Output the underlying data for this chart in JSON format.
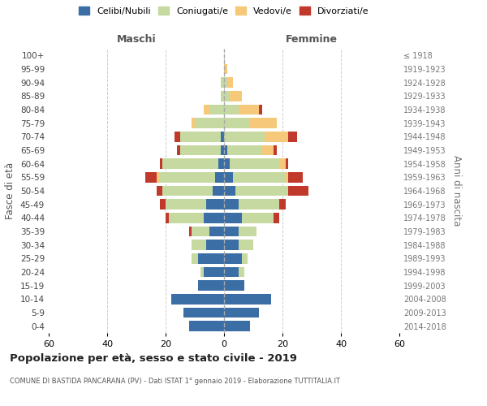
{
  "age_groups": [
    "0-4",
    "5-9",
    "10-14",
    "15-19",
    "20-24",
    "25-29",
    "30-34",
    "35-39",
    "40-44",
    "45-49",
    "50-54",
    "55-59",
    "60-64",
    "65-69",
    "70-74",
    "75-79",
    "80-84",
    "85-89",
    "90-94",
    "95-99",
    "100+"
  ],
  "birth_years": [
    "2014-2018",
    "2009-2013",
    "2004-2008",
    "1999-2003",
    "1994-1998",
    "1989-1993",
    "1984-1988",
    "1979-1983",
    "1974-1978",
    "1969-1973",
    "1964-1968",
    "1959-1963",
    "1954-1958",
    "1949-1953",
    "1944-1948",
    "1939-1943",
    "1934-1938",
    "1929-1933",
    "1924-1928",
    "1919-1923",
    "≤ 1918"
  ],
  "maschi": {
    "celibi": [
      12,
      14,
      18,
      9,
      7,
      9,
      6,
      5,
      7,
      6,
      4,
      3,
      2,
      1,
      1,
      0,
      0,
      0,
      0,
      0,
      0
    ],
    "coniugati": [
      0,
      0,
      0,
      0,
      1,
      2,
      5,
      6,
      12,
      14,
      17,
      19,
      19,
      14,
      14,
      10,
      5,
      1,
      1,
      0,
      0
    ],
    "vedovi": [
      0,
      0,
      0,
      0,
      0,
      0,
      0,
      0,
      0,
      0,
      0,
      1,
      0,
      0,
      0,
      1,
      2,
      0,
      0,
      0,
      0
    ],
    "divorziati": [
      0,
      0,
      0,
      0,
      0,
      0,
      0,
      1,
      1,
      2,
      2,
      4,
      1,
      1,
      2,
      0,
      0,
      0,
      0,
      0,
      0
    ]
  },
  "femmine": {
    "nubili": [
      9,
      12,
      16,
      7,
      5,
      6,
      5,
      5,
      6,
      5,
      4,
      3,
      2,
      1,
      0,
      0,
      0,
      0,
      0,
      0,
      0
    ],
    "coniugate": [
      0,
      0,
      0,
      0,
      2,
      2,
      5,
      6,
      11,
      14,
      18,
      18,
      17,
      12,
      14,
      9,
      5,
      2,
      1,
      0,
      0
    ],
    "vedove": [
      0,
      0,
      0,
      0,
      0,
      0,
      0,
      0,
      0,
      0,
      0,
      1,
      2,
      4,
      8,
      9,
      7,
      4,
      2,
      1,
      0
    ],
    "divorziate": [
      0,
      0,
      0,
      0,
      0,
      0,
      0,
      0,
      2,
      2,
      7,
      5,
      1,
      1,
      3,
      0,
      1,
      0,
      0,
      0,
      0
    ]
  },
  "colors": {
    "celibi": "#3a6ea5",
    "coniugati": "#c5d9a0",
    "vedovi": "#f5c87a",
    "divorziati": "#c0392b"
  },
  "title": "Popolazione per età, sesso e stato civile - 2019",
  "subtitle": "COMUNE DI BASTIDA PANCARANA (PV) - Dati ISTAT 1° gennaio 2019 - Elaborazione TUTTITALIA.IT",
  "xlabel_maschi": "Maschi",
  "xlabel_femmine": "Femmine",
  "ylabel_left": "Fasce di età",
  "ylabel_right": "Anni di nascita",
  "xlim": 60,
  "bg_color": "#ffffff",
  "grid_color": "#cccccc",
  "legend_labels": [
    "Celibi/Nubili",
    "Coniugati/e",
    "Vedovi/e",
    "Divorziati/e"
  ]
}
